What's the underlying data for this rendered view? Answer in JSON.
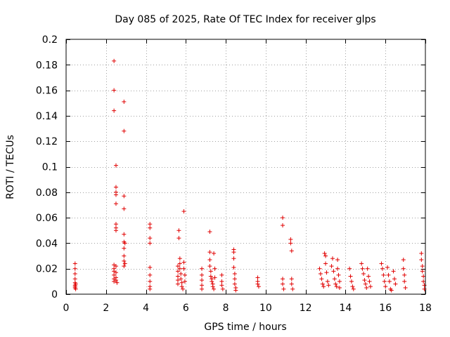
{
  "chart_data": {
    "type": "scatter",
    "title": "Day 085 of 2025, Rate Of TEC Index for receiver glps",
    "xlabel": "GPS time / hours",
    "ylabel": "ROTI / TECUs",
    "xlim": [
      0,
      18
    ],
    "ylim": [
      0,
      0.2
    ],
    "xticks": [
      0,
      2,
      4,
      6,
      8,
      10,
      12,
      14,
      16,
      18
    ],
    "yticks": [
      0,
      0.02,
      0.04,
      0.06,
      0.08,
      0.1,
      0.12,
      0.14,
      0.16,
      0.18,
      0.2
    ],
    "xtick_labels": [
      "0",
      "2",
      "4",
      "6",
      "8",
      "10",
      "12",
      "14",
      "16",
      "18"
    ],
    "ytick_labels": [
      "0",
      "0.02",
      "0.04",
      "0.06",
      "0.08",
      "0.1",
      "0.12",
      "0.14",
      "0.16",
      "0.18",
      "0.2"
    ],
    "grid": true,
    "marker": "+",
    "color": "#e00000",
    "series": [
      {
        "name": "ROTI",
        "points": [
          [
            0.45,
            0.005
          ],
          [
            0.45,
            0.007
          ],
          [
            0.45,
            0.009
          ],
          [
            0.45,
            0.012
          ],
          [
            0.45,
            0.016
          ],
          [
            0.45,
            0.02
          ],
          [
            0.45,
            0.024
          ],
          [
            0.45,
            0.006
          ],
          [
            0.48,
            0.008
          ],
          [
            0.48,
            0.004
          ],
          [
            2.4,
            0.183
          ],
          [
            2.4,
            0.16
          ],
          [
            2.4,
            0.144
          ],
          [
            2.5,
            0.101
          ],
          [
            2.5,
            0.084
          ],
          [
            2.5,
            0.08
          ],
          [
            2.5,
            0.078
          ],
          [
            2.5,
            0.071
          ],
          [
            2.5,
            0.055
          ],
          [
            2.5,
            0.052
          ],
          [
            2.5,
            0.05
          ],
          [
            2.4,
            0.023
          ],
          [
            2.4,
            0.02
          ],
          [
            2.4,
            0.018
          ],
          [
            2.4,
            0.015
          ],
          [
            2.4,
            0.012
          ],
          [
            2.4,
            0.01
          ],
          [
            2.5,
            0.022
          ],
          [
            2.5,
            0.017
          ],
          [
            2.5,
            0.013
          ],
          [
            2.5,
            0.011
          ],
          [
            2.55,
            0.009
          ],
          [
            2.9,
            0.151
          ],
          [
            2.9,
            0.128
          ],
          [
            2.9,
            0.077
          ],
          [
            2.9,
            0.067
          ],
          [
            2.9,
            0.047
          ],
          [
            2.9,
            0.041
          ],
          [
            2.9,
            0.036
          ],
          [
            2.9,
            0.03
          ],
          [
            2.9,
            0.026
          ],
          [
            2.9,
            0.022
          ],
          [
            2.95,
            0.04
          ],
          [
            2.95,
            0.024
          ],
          [
            4.2,
            0.055
          ],
          [
            4.2,
            0.052
          ],
          [
            4.2,
            0.044
          ],
          [
            4.2,
            0.04
          ],
          [
            4.2,
            0.021
          ],
          [
            4.2,
            0.015
          ],
          [
            4.2,
            0.01
          ],
          [
            4.2,
            0.006
          ],
          [
            4.2,
            0.004
          ],
          [
            5.6,
            0.022
          ],
          [
            5.6,
            0.018
          ],
          [
            5.6,
            0.014
          ],
          [
            5.6,
            0.011
          ],
          [
            5.6,
            0.008
          ],
          [
            5.65,
            0.05
          ],
          [
            5.65,
            0.044
          ],
          [
            5.7,
            0.028
          ],
          [
            5.7,
            0.024
          ],
          [
            5.7,
            0.02
          ],
          [
            5.75,
            0.016
          ],
          [
            5.75,
            0.012
          ],
          [
            5.8,
            0.009
          ],
          [
            5.8,
            0.006
          ],
          [
            5.85,
            0.004
          ],
          [
            5.9,
            0.065
          ],
          [
            5.9,
            0.025
          ],
          [
            5.9,
            0.02
          ],
          [
            5.95,
            0.015
          ],
          [
            5.95,
            0.01
          ],
          [
            6.8,
            0.02
          ],
          [
            6.8,
            0.015
          ],
          [
            6.8,
            0.011
          ],
          [
            6.8,
            0.007
          ],
          [
            6.8,
            0.004
          ],
          [
            7.2,
            0.049
          ],
          [
            7.2,
            0.033
          ],
          [
            7.2,
            0.027
          ],
          [
            7.2,
            0.022
          ],
          [
            7.25,
            0.018
          ],
          [
            7.25,
            0.014
          ],
          [
            7.3,
            0.012
          ],
          [
            7.3,
            0.01
          ],
          [
            7.35,
            0.008
          ],
          [
            7.35,
            0.006
          ],
          [
            7.4,
            0.004
          ],
          [
            7.4,
            0.032
          ],
          [
            7.45,
            0.02
          ],
          [
            7.45,
            0.013
          ],
          [
            7.8,
            0.015
          ],
          [
            7.8,
            0.01
          ],
          [
            7.8,
            0.007
          ],
          [
            7.85,
            0.004
          ],
          [
            8.4,
            0.035
          ],
          [
            8.4,
            0.033
          ],
          [
            8.4,
            0.028
          ],
          [
            8.4,
            0.021
          ],
          [
            8.45,
            0.016
          ],
          [
            8.45,
            0.012
          ],
          [
            8.45,
            0.008
          ],
          [
            8.5,
            0.005
          ],
          [
            8.5,
            0.003
          ],
          [
            9.6,
            0.013
          ],
          [
            9.6,
            0.01
          ],
          [
            9.6,
            0.008
          ],
          [
            9.65,
            0.006
          ],
          [
            10.85,
            0.06
          ],
          [
            10.85,
            0.054
          ],
          [
            10.85,
            0.012
          ],
          [
            10.85,
            0.008
          ],
          [
            10.9,
            0.004
          ],
          [
            11.25,
            0.043
          ],
          [
            11.25,
            0.04
          ],
          [
            11.3,
            0.034
          ],
          [
            11.3,
            0.012
          ],
          [
            11.3,
            0.008
          ],
          [
            11.35,
            0.004
          ],
          [
            12.7,
            0.02
          ],
          [
            12.75,
            0.016
          ],
          [
            12.8,
            0.012
          ],
          [
            12.85,
            0.008
          ],
          [
            12.9,
            0.006
          ],
          [
            12.95,
            0.032
          ],
          [
            13.0,
            0.03
          ],
          [
            13.0,
            0.024
          ],
          [
            13.05,
            0.017
          ],
          [
            13.1,
            0.01
          ],
          [
            13.15,
            0.007
          ],
          [
            13.3,
            0.022
          ],
          [
            13.35,
            0.028
          ],
          [
            13.4,
            0.018
          ],
          [
            13.45,
            0.012
          ],
          [
            13.5,
            0.008
          ],
          [
            13.55,
            0.006
          ],
          [
            13.6,
            0.027
          ],
          [
            13.6,
            0.02
          ],
          [
            13.65,
            0.015
          ],
          [
            13.7,
            0.01
          ],
          [
            13.7,
            0.005
          ],
          [
            14.2,
            0.02
          ],
          [
            14.25,
            0.014
          ],
          [
            14.3,
            0.01
          ],
          [
            14.35,
            0.006
          ],
          [
            14.4,
            0.004
          ],
          [
            14.8,
            0.024
          ],
          [
            14.85,
            0.02
          ],
          [
            14.9,
            0.016
          ],
          [
            14.95,
            0.011
          ],
          [
            15.0,
            0.008
          ],
          [
            15.05,
            0.005
          ],
          [
            15.1,
            0.02
          ],
          [
            15.15,
            0.014
          ],
          [
            15.2,
            0.01
          ],
          [
            15.25,
            0.006
          ],
          [
            15.8,
            0.024
          ],
          [
            15.85,
            0.02
          ],
          [
            15.9,
            0.015
          ],
          [
            15.95,
            0.01
          ],
          [
            16.0,
            0.006
          ],
          [
            16.1,
            0.021
          ],
          [
            16.15,
            0.015
          ],
          [
            16.2,
            0.01
          ],
          [
            16.25,
            0.004
          ],
          [
            16.3,
            0.003
          ],
          [
            16.4,
            0.018
          ],
          [
            16.45,
            0.012
          ],
          [
            16.5,
            0.008
          ],
          [
            16.9,
            0.027
          ],
          [
            16.9,
            0.02
          ],
          [
            16.95,
            0.015
          ],
          [
            16.95,
            0.01
          ],
          [
            17.0,
            0.005
          ],
          [
            17.8,
            0.032
          ],
          [
            17.8,
            0.027
          ],
          [
            17.85,
            0.022
          ],
          [
            17.85,
            0.018
          ],
          [
            17.9,
            0.014
          ],
          [
            17.9,
            0.01
          ],
          [
            17.95,
            0.007
          ],
          [
            17.95,
            0.004
          ]
        ]
      }
    ]
  }
}
